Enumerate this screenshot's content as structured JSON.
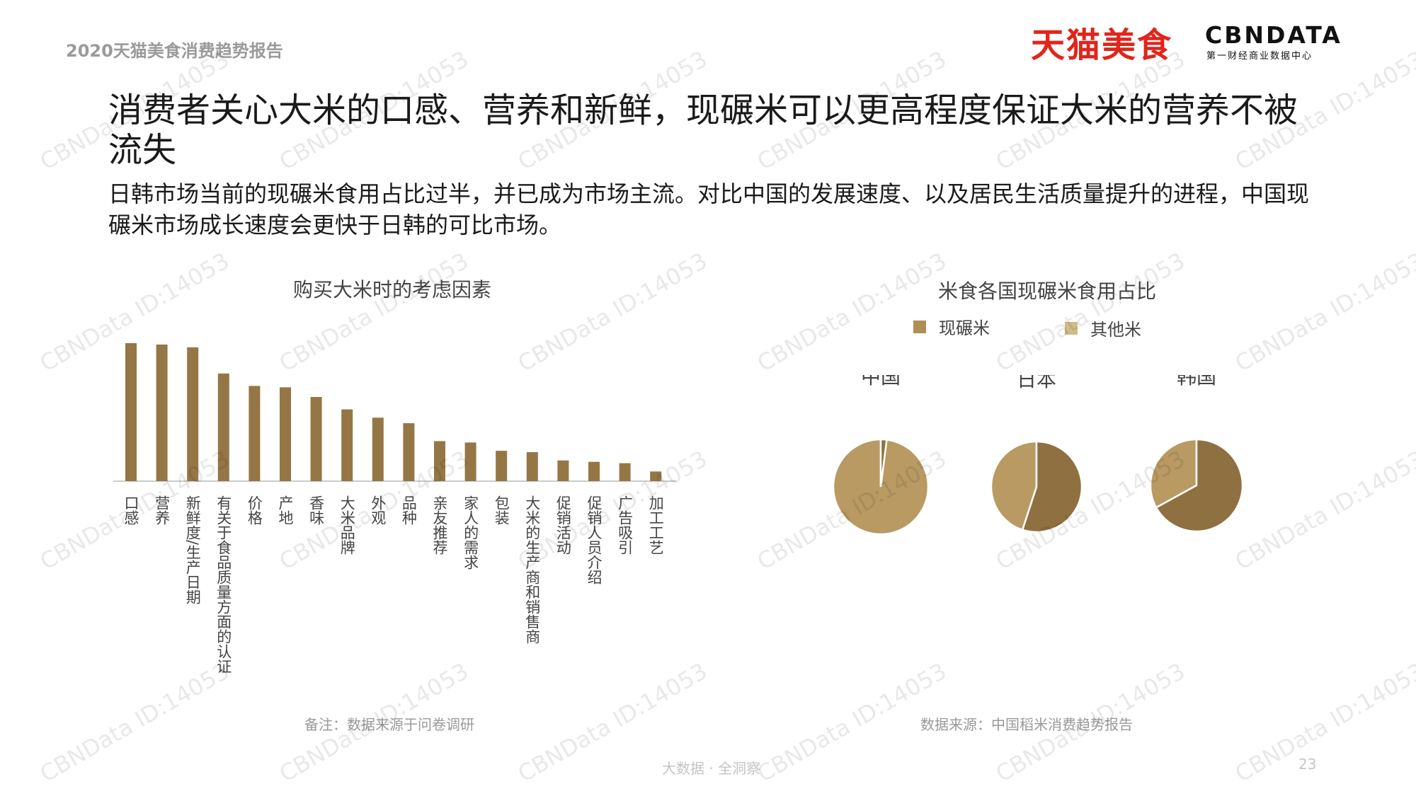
{
  "header": {
    "report_title": "2020天猫美食消费趋势报告",
    "brand_tmall": "天猫美食",
    "brand_cbn": "CBNDATA",
    "brand_cbn_sub": "第一财经商业数据中心"
  },
  "headline": "消费者关心大米的口感、营养和新鲜，现碾米可以更高程度保证大米的营养不被流失",
  "subheadline": "日韩市场当前的现碾米食用占比过半，并已成为市场主流。对比中国的发展速度、以及居民生活质量提升的进程，中国现碾米市场成长速度会更快于日韩的可比市场。",
  "colors": {
    "bar": "#957645",
    "fresh": "#8f7040",
    "other": "#b89a62",
    "legend_other": "#d2bb86"
  },
  "chart_data": [
    {
      "type": "bar",
      "title": "购买大米时的考虑因素",
      "categories": [
        "口感",
        "营养",
        "新鲜度/生产日期",
        "有关于食品质量方面的认证",
        "价格",
        "产地",
        "香味",
        "大米品牌",
        "外观",
        "品种",
        "亲友推荐",
        "家人的需求",
        "包装",
        "大米的生产商和销售商",
        "促销活动",
        "促销人员介绍",
        "广告吸引",
        "加工工艺"
      ],
      "values": [
        100,
        99,
        97,
        78,
        69,
        68,
        61,
        52,
        46,
        42,
        29,
        28,
        22,
        21,
        15,
        14,
        13,
        7
      ],
      "ylim": [
        0,
        100
      ],
      "xlabel": "",
      "ylabel": "",
      "grid": false,
      "note": "备注：数据来源于问卷调研"
    },
    {
      "type": "pie",
      "title": "米食各国现碾米食用占比",
      "legend": [
        "现碾米",
        "其他米"
      ],
      "legend_position": "top",
      "pies": [
        {
          "label": "中国",
          "fresh": 2,
          "other": 98
        },
        {
          "label": "日本",
          "fresh": 55,
          "other": 45
        },
        {
          "label": "韩国",
          "fresh": 67,
          "other": 33
        }
      ],
      "note": "数据来源：中国稻米消费趋势报告"
    }
  ],
  "footer": {
    "text": "大数据 · 全洞察",
    "page_number": "23"
  },
  "watermark": "CBNData ID:14053"
}
